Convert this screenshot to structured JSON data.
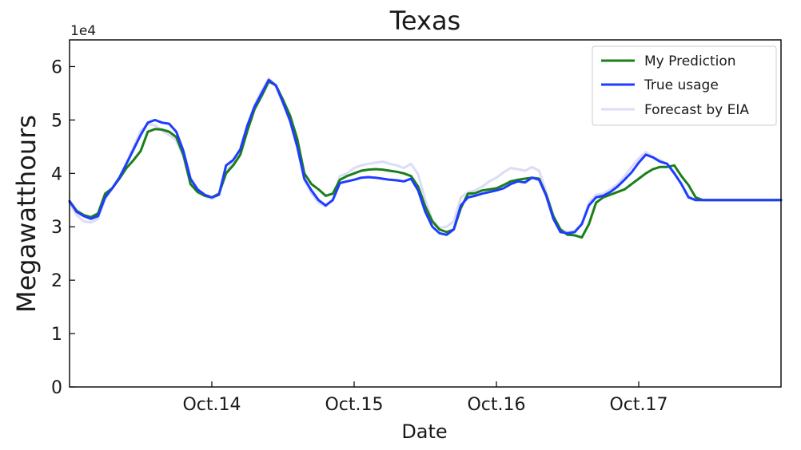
{
  "chart_data": {
    "type": "line",
    "title": "Texas",
    "xlabel": "Date",
    "ylabel": "Megawatthours",
    "y_offset_text": "1e4",
    "ylim": [
      0,
      6.5
    ],
    "xlim": [
      0,
      5
    ],
    "x_ticks": [
      {
        "value": 1,
        "label": "Oct.14"
      },
      {
        "value": 2,
        "label": "Oct.15"
      },
      {
        "value": 3,
        "label": "Oct.16"
      },
      {
        "value": 4,
        "label": "Oct.17"
      }
    ],
    "y_ticks": [
      {
        "value": 0,
        "label": "0"
      },
      {
        "value": 1,
        "label": "1"
      },
      {
        "value": 2,
        "label": "2"
      },
      {
        "value": 3,
        "label": "3"
      },
      {
        "value": 4,
        "label": "4"
      },
      {
        "value": 5,
        "label": "5"
      },
      {
        "value": 6,
        "label": "6"
      }
    ],
    "grid": false,
    "legend_position": "top-right",
    "x": [
      0.0,
      0.05,
      0.1,
      0.15,
      0.2,
      0.25,
      0.3,
      0.35,
      0.4,
      0.45,
      0.5,
      0.55,
      0.6,
      0.65,
      0.7,
      0.75,
      0.8,
      0.85,
      0.9,
      0.95,
      1.0,
      1.05,
      1.1,
      1.15,
      1.2,
      1.25,
      1.3,
      1.35,
      1.4,
      1.45,
      1.5,
      1.55,
      1.6,
      1.65,
      1.7,
      1.75,
      1.8,
      1.85,
      1.9,
      1.95,
      2.0,
      2.05,
      2.1,
      2.15,
      2.2,
      2.25,
      2.3,
      2.35,
      2.4,
      2.45,
      2.5,
      2.55,
      2.6,
      2.65,
      2.7,
      2.75,
      2.8,
      2.85,
      2.9,
      2.95,
      3.0,
      3.05,
      3.1,
      3.15,
      3.2,
      3.25,
      3.3,
      3.35,
      3.4,
      3.45,
      3.5,
      3.55,
      3.6,
      3.65,
      3.7,
      3.75,
      3.8,
      3.85,
      3.9,
      3.95,
      4.0,
      4.05,
      4.1,
      4.15,
      4.2,
      4.25,
      4.3,
      4.35,
      4.4,
      4.45,
      4.5,
      4.55,
      4.6,
      4.65,
      4.7,
      4.75,
      4.8,
      4.85,
      4.9,
      4.95,
      5.0
    ],
    "series": [
      {
        "name": "My Prediction",
        "color": "#1a7f1a",
        "values": [
          3.48,
          3.3,
          3.22,
          3.18,
          3.25,
          3.62,
          3.72,
          3.9,
          4.1,
          4.25,
          4.42,
          4.78,
          4.83,
          4.82,
          4.78,
          4.68,
          4.35,
          3.8,
          3.65,
          3.58,
          3.55,
          3.62,
          4.0,
          4.15,
          4.35,
          4.8,
          5.2,
          5.45,
          5.72,
          5.65,
          5.38,
          5.08,
          4.65,
          4.0,
          3.8,
          3.7,
          3.58,
          3.62,
          3.88,
          3.95,
          4.0,
          4.05,
          4.07,
          4.08,
          4.07,
          4.05,
          4.03,
          4.0,
          3.95,
          3.75,
          3.38,
          3.1,
          2.95,
          2.9,
          2.95,
          3.35,
          3.62,
          3.63,
          3.68,
          3.7,
          3.72,
          3.78,
          3.85,
          3.88,
          3.9,
          3.92,
          3.9,
          3.6,
          3.2,
          2.95,
          2.85,
          2.84,
          2.8,
          3.05,
          3.45,
          3.55,
          3.6,
          3.65,
          3.7,
          3.8,
          3.9,
          4.0,
          4.08,
          4.12,
          4.12,
          4.15,
          3.95,
          3.78,
          3.55,
          3.5,
          3.5,
          3.5,
          3.5,
          3.5,
          3.5,
          3.5,
          3.5,
          3.5,
          3.5,
          3.5,
          3.5
        ]
      },
      {
        "name": "True usage",
        "color": "#1f3dff",
        "values": [
          3.48,
          3.28,
          3.2,
          3.15,
          3.2,
          3.55,
          3.72,
          3.92,
          4.18,
          4.45,
          4.72,
          4.95,
          5.0,
          4.95,
          4.93,
          4.78,
          4.42,
          3.9,
          3.7,
          3.6,
          3.55,
          3.6,
          4.15,
          4.25,
          4.45,
          4.9,
          5.25,
          5.5,
          5.75,
          5.65,
          5.33,
          4.98,
          4.5,
          3.9,
          3.68,
          3.5,
          3.4,
          3.5,
          3.82,
          3.85,
          3.88,
          3.92,
          3.93,
          3.92,
          3.9,
          3.88,
          3.87,
          3.85,
          3.9,
          3.68,
          3.28,
          3.0,
          2.88,
          2.85,
          2.95,
          3.4,
          3.55,
          3.58,
          3.62,
          3.65,
          3.68,
          3.72,
          3.8,
          3.85,
          3.83,
          3.92,
          3.88,
          3.58,
          3.15,
          2.9,
          2.88,
          2.9,
          3.05,
          3.4,
          3.55,
          3.58,
          3.65,
          3.75,
          3.88,
          4.02,
          4.2,
          4.35,
          4.3,
          4.22,
          4.18,
          4.0,
          3.8,
          3.55,
          3.5,
          3.5,
          3.5,
          3.5,
          3.5,
          3.5,
          3.5,
          3.5,
          3.5,
          3.5,
          3.5,
          3.5,
          3.5
        ]
      },
      {
        "name": "Forecast by EIA",
        "color": "#dcdcf7",
        "values": [
          3.45,
          3.22,
          3.1,
          3.08,
          3.15,
          3.52,
          3.72,
          3.92,
          4.2,
          4.5,
          4.8,
          4.92,
          4.9,
          4.8,
          4.72,
          4.62,
          4.3,
          3.82,
          3.65,
          3.58,
          3.52,
          3.6,
          4.05,
          4.2,
          4.4,
          4.88,
          5.28,
          5.55,
          5.78,
          5.62,
          5.3,
          5.0,
          4.55,
          3.88,
          3.62,
          3.45,
          3.38,
          3.52,
          3.95,
          4.0,
          4.1,
          4.15,
          4.18,
          4.2,
          4.22,
          4.18,
          4.15,
          4.1,
          4.18,
          3.98,
          3.5,
          3.12,
          2.98,
          3.0,
          3.1,
          3.55,
          3.65,
          3.68,
          3.75,
          3.85,
          3.92,
          4.02,
          4.1,
          4.08,
          4.05,
          4.12,
          4.05,
          3.65,
          3.2,
          2.95,
          2.9,
          2.92,
          3.05,
          3.45,
          3.6,
          3.62,
          3.7,
          3.8,
          3.95,
          4.12,
          4.28,
          4.4,
          4.3,
          4.25,
          4.18,
          4.02,
          3.8,
          3.58,
          3.5,
          3.5,
          3.5,
          3.5,
          3.5,
          3.5,
          3.5,
          3.5,
          3.5,
          3.5,
          3.5,
          3.5,
          3.5
        ]
      }
    ]
  }
}
